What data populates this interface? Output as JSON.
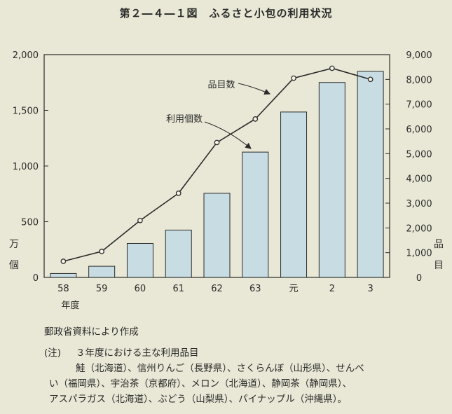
{
  "chart_data": {
    "type": "bar",
    "title": "第２―４―１図　ふるさと小包の利用状況",
    "categories": [
      "58",
      "59",
      "60",
      "61",
      "62",
      "63",
      "元",
      "2",
      "3"
    ],
    "xlabel": "年度",
    "left_axis": {
      "unit": [
        "万",
        "個"
      ],
      "ylim": [
        0,
        2000
      ],
      "ticks": [
        "0",
        "500",
        "1,000",
        "1,500",
        "2,000"
      ],
      "tick_values": [
        0,
        500,
        1000,
        1500,
        2000
      ]
    },
    "right_axis": {
      "unit": [
        "品",
        "目"
      ],
      "ylim": [
        0,
        9000
      ],
      "ticks": [
        "0",
        "1,000",
        "2,000",
        "3,000",
        "4,000",
        "5,000",
        "6,000",
        "7,000",
        "8,000",
        "9,000"
      ],
      "tick_values": [
        0,
        1000,
        2000,
        3000,
        4000,
        5000,
        6000,
        7000,
        8000,
        9000
      ]
    },
    "series": [
      {
        "name": "利用個数",
        "type": "bar",
        "axis": "left",
        "color": "#c8dde3",
        "values": [
          35,
          100,
          305,
          425,
          755,
          1125,
          1485,
          1750,
          1850
        ]
      },
      {
        "name": "品目数",
        "type": "line",
        "axis": "right",
        "color": "#2a2a2a",
        "values": [
          650,
          1050,
          2300,
          3400,
          5450,
          6400,
          8050,
          8450,
          8000
        ]
      }
    ],
    "annotations": [
      {
        "text": "品目数",
        "target_series": 1
      },
      {
        "text": "利用個数",
        "target_series": 0
      }
    ]
  },
  "notes": {
    "source": "郵政省資料により作成",
    "note_label": "(注)",
    "note_heading": "３年度における主な利用品目",
    "lines": [
      "鮭（北海道）、信州りんご（長野県）、さくらんぼ（山形県）、せんべ",
      "い（福岡県）、宇治茶（京都府）、メロン（北海道）、静岡茶（静岡県）、",
      "アスパラガス（北海道）、ぶどう（山梨県）、パイナップル（沖縄県）。"
    ]
  }
}
